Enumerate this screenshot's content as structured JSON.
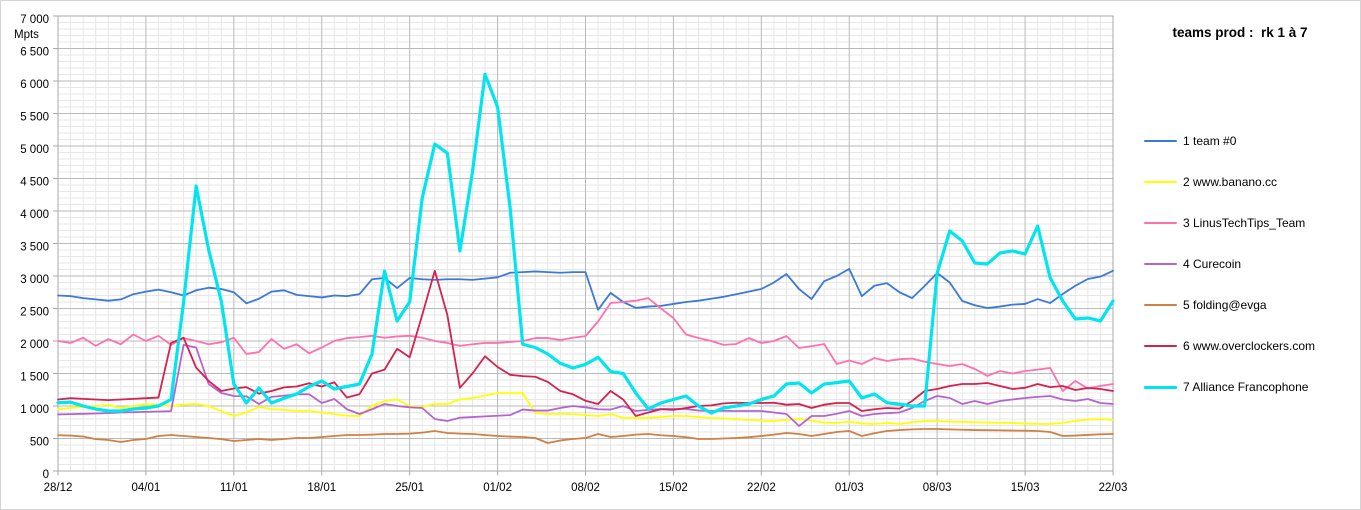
{
  "title": "teams prod :  rk 1 à 7",
  "chart_data": {
    "type": "line",
    "title": "teams prod :  rk 1 à 7",
    "unit_label": "Mpts",
    "legend_position": "right",
    "grid": {
      "minor_color": "#e7e7e7",
      "major_color": "#b9b9b9",
      "border_color": "#a8a8a8"
    },
    "x_axis": {
      "tick_labels": [
        "28/12",
        "04/01",
        "11/01",
        "18/01",
        "25/01",
        "01/02",
        "08/02",
        "15/02",
        "22/02",
        "01/03",
        "08/03",
        "15/03",
        "22/03"
      ],
      "days_per_major": 7,
      "points": 85
    },
    "y_axis": {
      "min": 0,
      "max": 7000,
      "major_step": 500,
      "minor_step": 100,
      "tick_labels": [
        "7 000",
        "6 500",
        "6 000",
        "5 500",
        "5 000",
        "4 500",
        "4 000",
        "3 500",
        "3 000",
        "2 500",
        "2 000",
        "1 500",
        "1 000",
        "500",
        "0"
      ]
    },
    "series": [
      {
        "rank": 1,
        "name": "team #0",
        "legend_label": "1 team #0",
        "color": "#3c78d8",
        "line_width": 1.8,
        "values": [
          2700,
          2690,
          2660,
          2640,
          2620,
          2640,
          2720,
          2760,
          2790,
          2750,
          2700,
          2780,
          2820,
          2800,
          2750,
          2580,
          2650,
          2760,
          2780,
          2710,
          2690,
          2670,
          2700,
          2690,
          2720,
          2950,
          2970,
          2815,
          2970,
          2950,
          2940,
          2950,
          2950,
          2940,
          2960,
          2980,
          3050,
          3060,
          3070,
          3060,
          3050,
          3060,
          3060,
          2480,
          2740,
          2600,
          2510,
          2530,
          2540,
          2570,
          2600,
          2620,
          2650,
          2680,
          2720,
          2760,
          2800,
          2900,
          3030,
          2800,
          2645,
          2920,
          3000,
          3110,
          2690,
          2850,
          2890,
          2750,
          2660,
          2846,
          3046,
          2900,
          2615,
          2550,
          2508,
          2530,
          2560,
          2570,
          2645,
          2585,
          2723,
          2850,
          2954,
          2990,
          3080
        ]
      },
      {
        "rank": 2,
        "name": "www.banano.cc",
        "legend_label": "2 www.banano.cc",
        "color": "#ffff00",
        "line_width": 1.8,
        "values": [
          950,
          970,
          985,
          1000,
          1015,
          970,
          1000,
          1030,
          1015,
          1000,
          1020,
          1031,
          1000,
          920,
          846,
          900,
          985,
          954,
          940,
          923,
          923,
          900,
          877,
          850,
          846,
          1000,
          1077,
          1100,
          1000,
          980,
          1031,
          1031,
          1100,
          1123,
          1160,
          1200,
          1200,
          1200,
          892,
          877,
          877,
          877,
          860,
          846,
          877,
          815,
          815,
          820,
          830,
          846,
          846,
          830,
          815,
          810,
          800,
          785,
          775,
          769,
          785,
          800,
          775,
          745,
          738,
          760,
          730,
          723,
          738,
          723,
          750,
          769,
          769,
          760,
          755,
          750,
          745,
          740,
          738,
          730,
          725,
          723,
          740,
          769,
          790,
          800,
          785
        ]
      },
      {
        "rank": 3,
        "name": "LinusTechTips_Team",
        "legend_label": "3 LinusTechTips_Team",
        "color": "#ff70b0",
        "line_width": 1.8,
        "values": [
          2000,
          1970,
          2050,
          1925,
          2030,
          1950,
          2100,
          2000,
          2080,
          1940,
          2045,
          2000,
          1950,
          1980,
          2050,
          1800,
          1830,
          2030,
          1880,
          1950,
          1810,
          1900,
          2000,
          2045,
          2060,
          2080,
          2050,
          2070,
          2080,
          2050,
          2000,
          1970,
          1925,
          1950,
          1970,
          1970,
          1985,
          2000,
          2045,
          2045,
          2015,
          2050,
          2075,
          2300,
          2585,
          2600,
          2620,
          2660,
          2500,
          2354,
          2100,
          2046,
          2000,
          1940,
          1954,
          2046,
          1969,
          2000,
          2077,
          1892,
          1920,
          1954,
          1646,
          1700,
          1646,
          1738,
          1692,
          1720,
          1730,
          1680,
          1646,
          1615,
          1646,
          1569,
          1462,
          1538,
          1500,
          1538,
          1560,
          1585,
          1230,
          1385,
          1270,
          1310,
          1338
        ]
      },
      {
        "rank": 4,
        "name": "Curecoin",
        "legend_label": "4 Curecoin",
        "color": "#b564cf",
        "line_width": 1.8,
        "values": [
          870,
          875,
          880,
          885,
          890,
          900,
          905,
          910,
          915,
          920,
          1940,
          1900,
          1338,
          1200,
          1154,
          1150,
          1030,
          1140,
          1160,
          1180,
          1180,
          1046,
          1108,
          950,
          877,
          950,
          1031,
          1000,
          980,
          969,
          800,
          769,
          820,
          830,
          840,
          850,
          860,
          945,
          930,
          930,
          969,
          1000,
          980,
          950,
          945,
          1000,
          923,
          940,
          954,
          954,
          954,
          930,
          923,
          925,
          923,
          923,
          923,
          900,
          877,
          692,
          846,
          846,
          880,
          923,
          846,
          877,
          890,
          900,
          969,
          1077,
          1154,
          1123,
          1031,
          1077,
          1031,
          1077,
          1100,
          1123,
          1140,
          1154,
          1100,
          1077,
          1108,
          1046,
          1031
        ]
      },
      {
        "rank": 5,
        "name": "folding@evga",
        "legend_label": "5 folding@evga",
        "color": "#cd8145",
        "line_width": 1.8,
        "values": [
          550,
          545,
          530,
          490,
          477,
          446,
          477,
          492,
          538,
          554,
          538,
          523,
          508,
          490,
          461,
          477,
          492,
          477,
          492,
          508,
          508,
          523,
          538,
          554,
          554,
          560,
          569,
          569,
          575,
          590,
          615,
          585,
          575,
          569,
          554,
          538,
          530,
          523,
          508,
          431,
          470,
          492,
          508,
          569,
          523,
          538,
          560,
          569,
          550,
          538,
          520,
          492,
          492,
          500,
          508,
          520,
          538,
          560,
          585,
          569,
          538,
          569,
          600,
          615,
          538,
          580,
          615,
          630,
          640,
          646,
          646,
          640,
          635,
          630,
          628,
          625,
          622,
          620,
          615,
          600,
          538,
          545,
          555,
          565,
          569
        ]
      },
      {
        "rank": 6,
        "name": "www.overclockers.com",
        "legend_label": "6 www.overclockers.com",
        "color": "#d6204e",
        "line_width": 1.8,
        "values": [
          1100,
          1120,
          1110,
          1100,
          1090,
          1100,
          1110,
          1120,
          1130,
          1970,
          2050,
          1590,
          1385,
          1231,
          1270,
          1290,
          1190,
          1230,
          1286,
          1300,
          1350,
          1300,
          1365,
          1130,
          1180,
          1500,
          1560,
          1880,
          1750,
          2400,
          3080,
          2400,
          1280,
          1500,
          1765,
          1600,
          1480,
          1460,
          1450,
          1370,
          1230,
          1180,
          1080,
          1030,
          1231,
          1100,
          846,
          900,
          950,
          940,
          969,
          1000,
          1010,
          1040,
          1050,
          1046,
          1046,
          1050,
          1020,
          1031,
          969,
          1020,
          1046,
          1046,
          923,
          950,
          969,
          960,
          1077,
          1231,
          1262,
          1308,
          1338,
          1338,
          1354,
          1308,
          1262,
          1280,
          1338,
          1290,
          1308,
          1246,
          1277,
          1262,
          1231
        ]
      },
      {
        "rank": 7,
        "name": "Alliance Francophone",
        "legend_label": "7 Alliance Francophone",
        "color": "#00e5ee",
        "line_width": 3.2,
        "values": [
          1050,
          1060,
          1000,
          954,
          923,
          923,
          954,
          969,
          1000,
          1100,
          2600,
          4383,
          3400,
          2615,
          1338,
          1046,
          1277,
          1046,
          1120,
          1185,
          1300,
          1385,
          1262,
          1300,
          1338,
          1800,
          3075,
          2308,
          2600,
          4200,
          5030,
          4890,
          3385,
          4600,
          6105,
          5600,
          4045,
          1950,
          1900,
          1800,
          1655,
          1585,
          1640,
          1750,
          1530,
          1500,
          1200,
          954,
          1046,
          1100,
          1154,
          1000,
          892,
          969,
          1000,
          1031,
          1100,
          1154,
          1338,
          1354,
          1200,
          1338,
          1360,
          1385,
          1123,
          1185,
          1050,
          1030,
          1000,
          1000,
          3046,
          3692,
          3538,
          3200,
          3185,
          3354,
          3385,
          3338,
          3769,
          2970,
          2615,
          2338,
          2354,
          2308,
          2615
        ]
      }
    ]
  }
}
